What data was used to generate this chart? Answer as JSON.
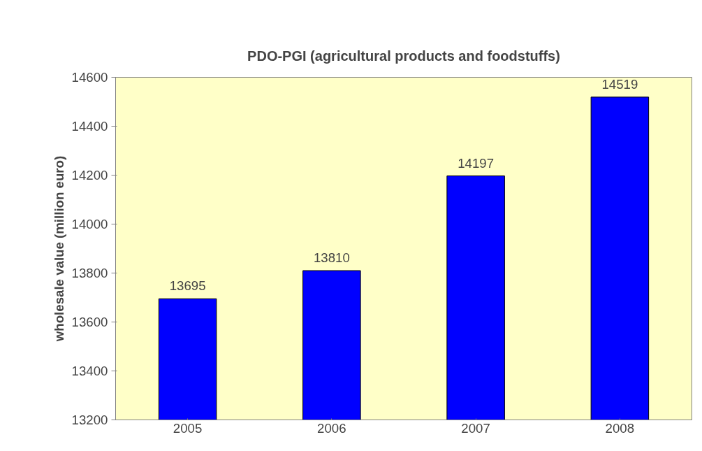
{
  "chart_data": {
    "type": "bar",
    "title": "PDO-PGI (agricultural products and foodstuffs)",
    "ylabel": "wholesale value (million euro)",
    "categories": [
      "2005",
      "2006",
      "2007",
      "2008"
    ],
    "values": [
      13695,
      13810,
      14197,
      14519
    ],
    "color": "#0000ff",
    "ylim": [
      13200,
      14600
    ],
    "yticks": [
      13200,
      13400,
      13600,
      13800,
      14000,
      14200,
      14400,
      14600
    ],
    "grid": false,
    "data_labels": true
  }
}
